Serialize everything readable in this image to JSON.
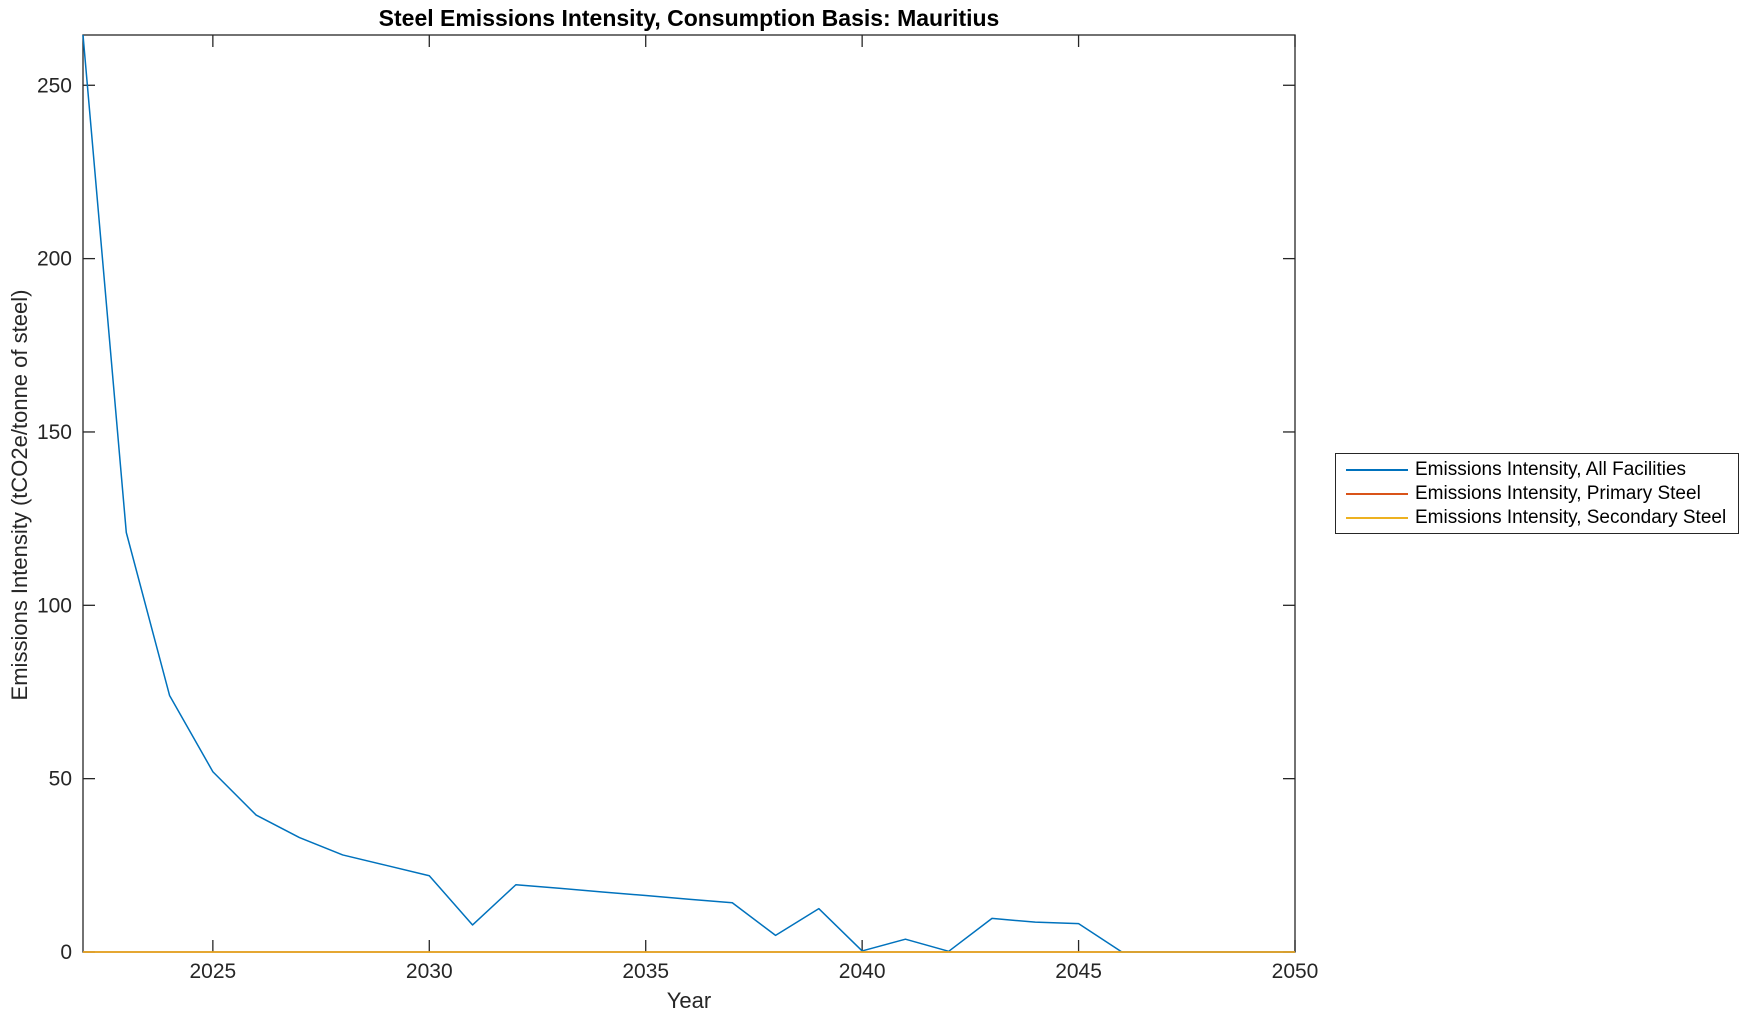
{
  "figure": {
    "title": "Steel Emissions Intensity, Consumption Basis: Mauritius",
    "xlabel": "Year",
    "ylabel": "Emissions Intensity (tCO2e/tonne of steel)"
  },
  "legend": {
    "items": [
      {
        "label": "Emissions Intensity, All Facilities",
        "color": "#0072BD"
      },
      {
        "label": "Emissions Intensity, Primary Steel",
        "color": "#D95319"
      },
      {
        "label": "Emissions Intensity, Secondary Steel",
        "color": "#EDB120"
      }
    ]
  },
  "chart_data": {
    "type": "line",
    "title": "Steel Emissions Intensity, Consumption Basis: Mauritius",
    "xlabel": "Year",
    "ylabel": "Emissions Intensity (tCO2e/tonne of steel)",
    "x": [
      2022,
      2023,
      2024,
      2025,
      2026,
      2027,
      2028,
      2029,
      2030,
      2031,
      2032,
      2033,
      2034,
      2035,
      2036,
      2037,
      2038,
      2039,
      2040,
      2041,
      2042,
      2043,
      2044,
      2045,
      2046,
      2047,
      2048,
      2049,
      2050
    ],
    "series": [
      {
        "name": "Emissions Intensity, All Facilities",
        "color": "#0072BD",
        "values": [
          264.5,
          121,
          74,
          52,
          39.5,
          33,
          28,
          25,
          22,
          7.8,
          19.4,
          18.4,
          17.3,
          16.3,
          15.2,
          14.2,
          4.8,
          12.5,
          0.3,
          3.7,
          0.2,
          9.7,
          8.6,
          8.2,
          0,
          0,
          0,
          0,
          0
        ]
      },
      {
        "name": "Emissions Intensity, Primary Steel",
        "color": "#D95319",
        "values": [
          0,
          0,
          0,
          0,
          0,
          0,
          0,
          0,
          0,
          0,
          0,
          0,
          0,
          0,
          0,
          0,
          0,
          0,
          0,
          0,
          0,
          0,
          0,
          0,
          0,
          0,
          0,
          0,
          0
        ]
      },
      {
        "name": "Emissions Intensity, Secondary Steel",
        "color": "#EDB120",
        "values": [
          0,
          0,
          0,
          0,
          0,
          0,
          0,
          0,
          0,
          0,
          0,
          0,
          0,
          0,
          0,
          0,
          0,
          0,
          0,
          0,
          0,
          0,
          0,
          0,
          0,
          0,
          0,
          0,
          0
        ]
      }
    ],
    "xlim": [
      2022,
      2050
    ],
    "ylim": [
      0,
      264.5
    ],
    "xticks": [
      2025,
      2030,
      2035,
      2040,
      2045,
      2050
    ],
    "yticks": [
      0,
      50,
      100,
      150,
      200,
      250
    ],
    "grid": false,
    "legend_position": "outside-right"
  }
}
